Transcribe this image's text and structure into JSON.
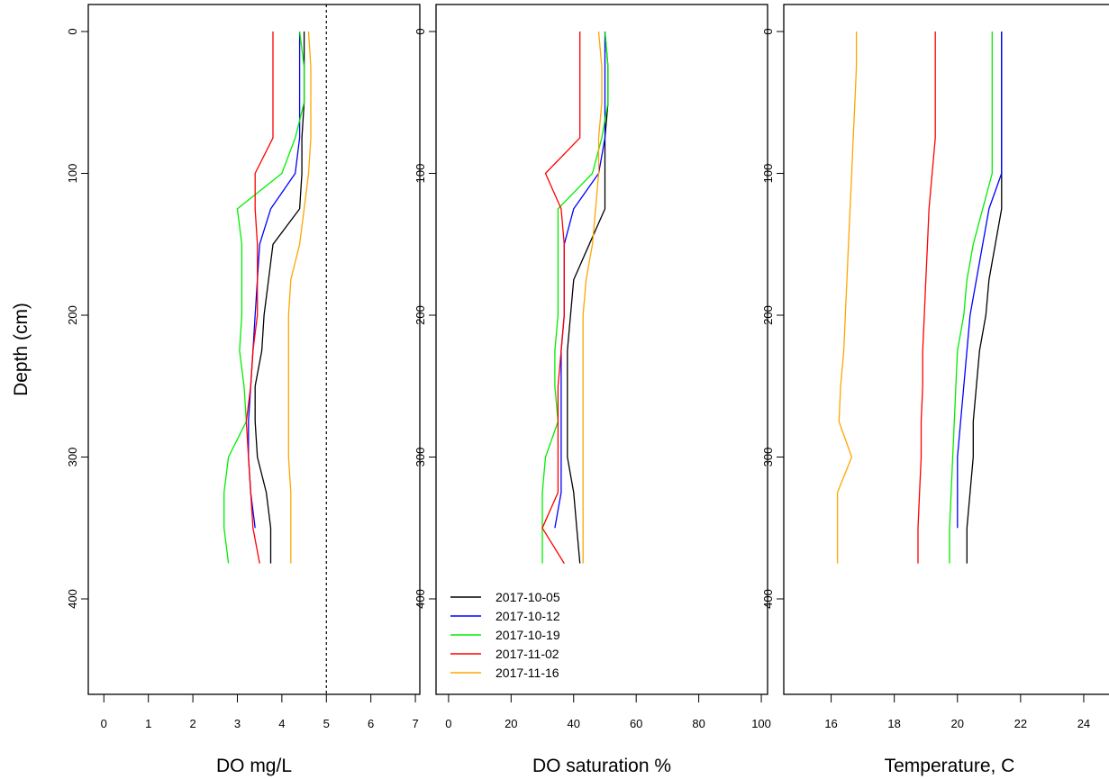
{
  "figure": {
    "ylabel": "Depth (cm)",
    "ylim": [
      0,
      465
    ],
    "ylim_reversed": true,
    "yticks": [
      0,
      100,
      200,
      300,
      400
    ]
  },
  "legend": {
    "placement": "bottom-left of middle panel",
    "entries": [
      {
        "label": "2017-10-05",
        "color": "#000000"
      },
      {
        "label": "2017-10-12",
        "color": "#0000ff"
      },
      {
        "label": "2017-10-19",
        "color": "#00ee00"
      },
      {
        "label": "2017-11-02",
        "color": "#ff0000"
      },
      {
        "label": "2017-11-16",
        "color": "#ffa500"
      }
    ]
  },
  "chart_data": [
    {
      "type": "line",
      "orientation": "depth-profile",
      "xlabel": "DO mg/L",
      "ylabel": "Depth (cm)",
      "xlim": [
        -0.35,
        7.1
      ],
      "ylim": [
        0,
        465
      ],
      "xticks": [
        0,
        1,
        2,
        3,
        4,
        5,
        6,
        7
      ],
      "yticks": [
        0,
        100,
        200,
        300,
        400
      ],
      "reference_line": {
        "x": 5,
        "style": "dotted"
      },
      "series": [
        {
          "name": "2017-10-05",
          "color": "#000000",
          "points": [
            [
              4.5,
              0
            ],
            [
              4.5,
              25
            ],
            [
              4.5,
              50
            ],
            [
              4.45,
              75
            ],
            [
              4.45,
              100
            ],
            [
              4.4,
              125
            ],
            [
              3.8,
              150
            ],
            [
              3.7,
              175
            ],
            [
              3.6,
              200
            ],
            [
              3.55,
              225
            ],
            [
              3.4,
              250
            ],
            [
              3.4,
              275
            ],
            [
              3.45,
              300
            ],
            [
              3.65,
              325
            ],
            [
              3.75,
              350
            ],
            [
              3.75,
              375
            ]
          ]
        },
        {
          "name": "2017-10-12",
          "color": "#0000ff",
          "points": [
            [
              4.4,
              0
            ],
            [
              4.4,
              25
            ],
            [
              4.4,
              50
            ],
            [
              4.4,
              75
            ],
            [
              4.3,
              100
            ],
            [
              3.75,
              125
            ],
            [
              3.5,
              150
            ],
            [
              3.45,
              175
            ],
            [
              3.4,
              200
            ],
            [
              3.35,
              225
            ],
            [
              3.3,
              250
            ],
            [
              3.25,
              275
            ],
            [
              3.25,
              300
            ],
            [
              3.3,
              325
            ],
            [
              3.4,
              350
            ]
          ]
        },
        {
          "name": "2017-10-19",
          "color": "#00ee00",
          "points": [
            [
              4.4,
              0
            ],
            [
              4.5,
              25
            ],
            [
              4.5,
              50
            ],
            [
              4.3,
              75
            ],
            [
              4.0,
              100
            ],
            [
              3.0,
              125
            ],
            [
              3.1,
              150
            ],
            [
              3.1,
              175
            ],
            [
              3.1,
              200
            ],
            [
              3.05,
              225
            ],
            [
              3.15,
              250
            ],
            [
              3.2,
              275
            ],
            [
              2.8,
              300
            ],
            [
              2.7,
              325
            ],
            [
              2.7,
              350
            ],
            [
              2.8,
              375
            ]
          ]
        },
        {
          "name": "2017-11-02",
          "color": "#ff0000",
          "points": [
            [
              3.8,
              0
            ],
            [
              3.8,
              25
            ],
            [
              3.8,
              50
            ],
            [
              3.8,
              75
            ],
            [
              3.4,
              100
            ],
            [
              3.4,
              125
            ],
            [
              3.45,
              150
            ],
            [
              3.45,
              175
            ],
            [
              3.45,
              200
            ],
            [
              3.35,
              225
            ],
            [
              3.3,
              250
            ],
            [
              3.2,
              275
            ],
            [
              3.25,
              300
            ],
            [
              3.3,
              325
            ],
            [
              3.35,
              350
            ],
            [
              3.5,
              375
            ]
          ]
        },
        {
          "name": "2017-11-16",
          "color": "#ffa500",
          "points": [
            [
              4.6,
              0
            ],
            [
              4.65,
              25
            ],
            [
              4.65,
              50
            ],
            [
              4.65,
              75
            ],
            [
              4.6,
              100
            ],
            [
              4.5,
              125
            ],
            [
              4.4,
              150
            ],
            [
              4.2,
              175
            ],
            [
              4.15,
              200
            ],
            [
              4.15,
              225
            ],
            [
              4.15,
              250
            ],
            [
              4.15,
              275
            ],
            [
              4.15,
              300
            ],
            [
              4.2,
              325
            ],
            [
              4.2,
              350
            ],
            [
              4.2,
              375
            ]
          ]
        }
      ]
    },
    {
      "type": "line",
      "orientation": "depth-profile",
      "xlabel": "DO saturation %",
      "ylabel": "Depth (cm)",
      "xlim": [
        -4,
        102
      ],
      "ylim": [
        0,
        465
      ],
      "xticks": [
        0,
        20,
        40,
        60,
        80,
        100
      ],
      "yticks": [
        0,
        100,
        200,
        300,
        400
      ],
      "series": [
        {
          "name": "2017-10-05",
          "color": "#000000",
          "points": [
            [
              50,
              0
            ],
            [
              51,
              25
            ],
            [
              51,
              50
            ],
            [
              50,
              75
            ],
            [
              50,
              100
            ],
            [
              50,
              125
            ],
            [
              45,
              150
            ],
            [
              40,
              175
            ],
            [
              39,
              200
            ],
            [
              38,
              225
            ],
            [
              38,
              250
            ],
            [
              38,
              275
            ],
            [
              38,
              300
            ],
            [
              40,
              325
            ],
            [
              41,
              350
            ],
            [
              42,
              375
            ]
          ]
        },
        {
          "name": "2017-10-12",
          "color": "#0000ff",
          "points": [
            [
              50,
              0
            ],
            [
              50,
              25
            ],
            [
              50,
              50
            ],
            [
              50,
              75
            ],
            [
              48,
              100
            ],
            [
              40,
              125
            ],
            [
              37,
              150
            ],
            [
              37,
              175
            ],
            [
              37,
              200
            ],
            [
              36,
              225
            ],
            [
              36,
              250
            ],
            [
              36,
              275
            ],
            [
              36,
              300
            ],
            [
              36,
              325
            ],
            [
              34,
              350
            ]
          ]
        },
        {
          "name": "2017-10-19",
          "color": "#00ee00",
          "points": [
            [
              50,
              0
            ],
            [
              51,
              25
            ],
            [
              51,
              50
            ],
            [
              49,
              75
            ],
            [
              46,
              100
            ],
            [
              35,
              125
            ],
            [
              35,
              150
            ],
            [
              35,
              175
            ],
            [
              35,
              200
            ],
            [
              34,
              225
            ],
            [
              34,
              250
            ],
            [
              35,
              275
            ],
            [
              31,
              300
            ],
            [
              30,
              325
            ],
            [
              30,
              350
            ],
            [
              30,
              375
            ]
          ]
        },
        {
          "name": "2017-11-02",
          "color": "#ff0000",
          "points": [
            [
              42,
              0
            ],
            [
              42,
              25
            ],
            [
              42,
              50
            ],
            [
              42,
              75
            ],
            [
              31,
              100
            ],
            [
              36,
              125
            ],
            [
              37,
              150
            ],
            [
              37,
              175
            ],
            [
              37,
              200
            ],
            [
              36,
              225
            ],
            [
              35,
              250
            ],
            [
              35,
              275
            ],
            [
              35,
              300
            ],
            [
              35,
              325
            ],
            [
              30,
              350
            ],
            [
              37,
              375
            ]
          ]
        },
        {
          "name": "2017-11-16",
          "color": "#ffa500",
          "points": [
            [
              48,
              0
            ],
            [
              49,
              25
            ],
            [
              49,
              50
            ],
            [
              48,
              75
            ],
            [
              48,
              100
            ],
            [
              47,
              125
            ],
            [
              46,
              150
            ],
            [
              44,
              175
            ],
            [
              43,
              200
            ],
            [
              43,
              225
            ],
            [
              43,
              250
            ],
            [
              43,
              275
            ],
            [
              43,
              300
            ],
            [
              43,
              325
            ],
            [
              43,
              350
            ],
            [
              43,
              375
            ]
          ]
        }
      ]
    },
    {
      "type": "line",
      "orientation": "depth-profile",
      "xlabel": "Temperature, C",
      "ylabel": "Depth (cm)",
      "xlim": [
        14.5,
        25.0
      ],
      "ylim": [
        0,
        465
      ],
      "xticks": [
        16,
        18,
        20,
        22,
        24
      ],
      "yticks": [
        0,
        100,
        200,
        300,
        400
      ],
      "series": [
        {
          "name": "2017-10-05",
          "color": "#000000",
          "points": [
            [
              21.4,
              0
            ],
            [
              21.4,
              25
            ],
            [
              21.4,
              50
            ],
            [
              21.4,
              75
            ],
            [
              21.4,
              100
            ],
            [
              21.4,
              125
            ],
            [
              21.2,
              150
            ],
            [
              21.0,
              175
            ],
            [
              20.9,
              200
            ],
            [
              20.7,
              225
            ],
            [
              20.6,
              250
            ],
            [
              20.5,
              275
            ],
            [
              20.5,
              300
            ],
            [
              20.4,
              325
            ],
            [
              20.3,
              350
            ],
            [
              20.3,
              375
            ]
          ]
        },
        {
          "name": "2017-10-12",
          "color": "#0000ff",
          "points": [
            [
              21.4,
              0
            ],
            [
              21.4,
              25
            ],
            [
              21.4,
              50
            ],
            [
              21.4,
              75
            ],
            [
              21.4,
              100
            ],
            [
              21.0,
              125
            ],
            [
              20.8,
              150
            ],
            [
              20.6,
              175
            ],
            [
              20.4,
              200
            ],
            [
              20.3,
              225
            ],
            [
              20.2,
              250
            ],
            [
              20.1,
              275
            ],
            [
              20.0,
              300
            ],
            [
              20.0,
              325
            ],
            [
              20.0,
              350
            ]
          ]
        },
        {
          "name": "2017-10-19",
          "color": "#00ee00",
          "points": [
            [
              21.1,
              0
            ],
            [
              21.1,
              25
            ],
            [
              21.1,
              50
            ],
            [
              21.1,
              75
            ],
            [
              21.1,
              100
            ],
            [
              20.8,
              125
            ],
            [
              20.5,
              150
            ],
            [
              20.3,
              175
            ],
            [
              20.2,
              200
            ],
            [
              20.0,
              225
            ],
            [
              19.95,
              250
            ],
            [
              19.9,
              275
            ],
            [
              19.85,
              300
            ],
            [
              19.8,
              325
            ],
            [
              19.75,
              350
            ],
            [
              19.75,
              375
            ]
          ]
        },
        {
          "name": "2017-11-02",
          "color": "#ff0000",
          "points": [
            [
              19.3,
              0
            ],
            [
              19.3,
              25
            ],
            [
              19.3,
              50
            ],
            [
              19.3,
              75
            ],
            [
              19.2,
              100
            ],
            [
              19.1,
              125
            ],
            [
              19.05,
              150
            ],
            [
              19.0,
              175
            ],
            [
              18.95,
              200
            ],
            [
              18.9,
              225
            ],
            [
              18.9,
              250
            ],
            [
              18.85,
              275
            ],
            [
              18.85,
              300
            ],
            [
              18.8,
              325
            ],
            [
              18.75,
              350
            ],
            [
              18.75,
              375
            ]
          ]
        },
        {
          "name": "2017-11-16",
          "color": "#ffa500",
          "points": [
            [
              16.8,
              0
            ],
            [
              16.8,
              25
            ],
            [
              16.75,
              50
            ],
            [
              16.7,
              75
            ],
            [
              16.65,
              100
            ],
            [
              16.6,
              125
            ],
            [
              16.55,
              150
            ],
            [
              16.5,
              175
            ],
            [
              16.45,
              200
            ],
            [
              16.4,
              225
            ],
            [
              16.3,
              250
            ],
            [
              16.25,
              275
            ],
            [
              16.65,
              300
            ],
            [
              16.2,
              325
            ],
            [
              16.2,
              350
            ],
            [
              16.2,
              375
            ]
          ]
        }
      ]
    }
  ]
}
